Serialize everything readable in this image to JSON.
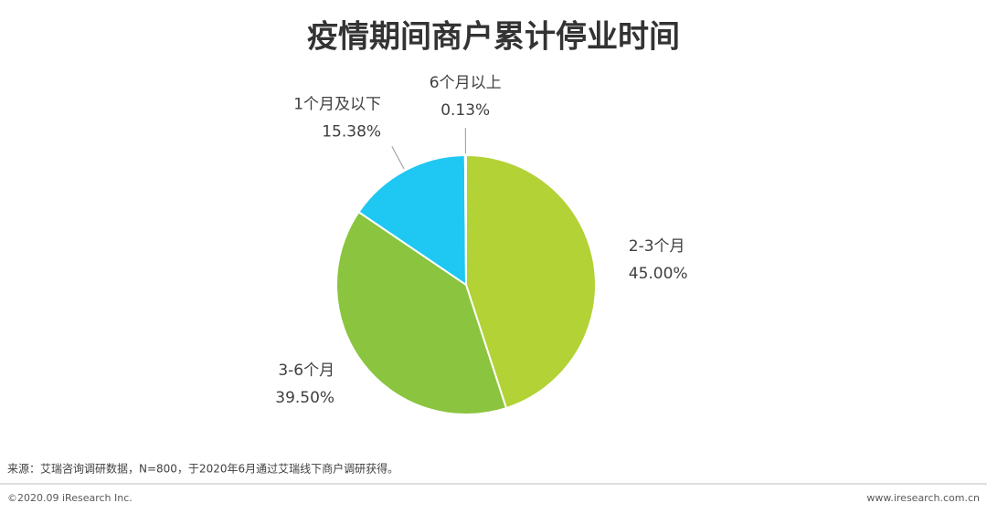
{
  "chart_data": {
    "type": "pie",
    "title": "疫情期间商户累计停业时间",
    "categories": [
      "2-3个月",
      "3-6个月",
      "1个月及以下",
      "6个月以上"
    ],
    "values": [
      45.0,
      39.5,
      15.38,
      0.13
    ],
    "value_labels": [
      "45.00%",
      "39.50%",
      "15.38%",
      "0.13%"
    ],
    "colors": [
      "#b2d235",
      "#8bc43f",
      "#1ec8f2",
      "#1f4e9c"
    ],
    "source": "来源：艾瑞咨询调研数据，N=800，于2020年6月通过艾瑞线下商户调研获得。",
    "footer": {
      "left": "©2020.09 iResearch Inc.",
      "right": "www.iresearch.com.cn"
    }
  }
}
